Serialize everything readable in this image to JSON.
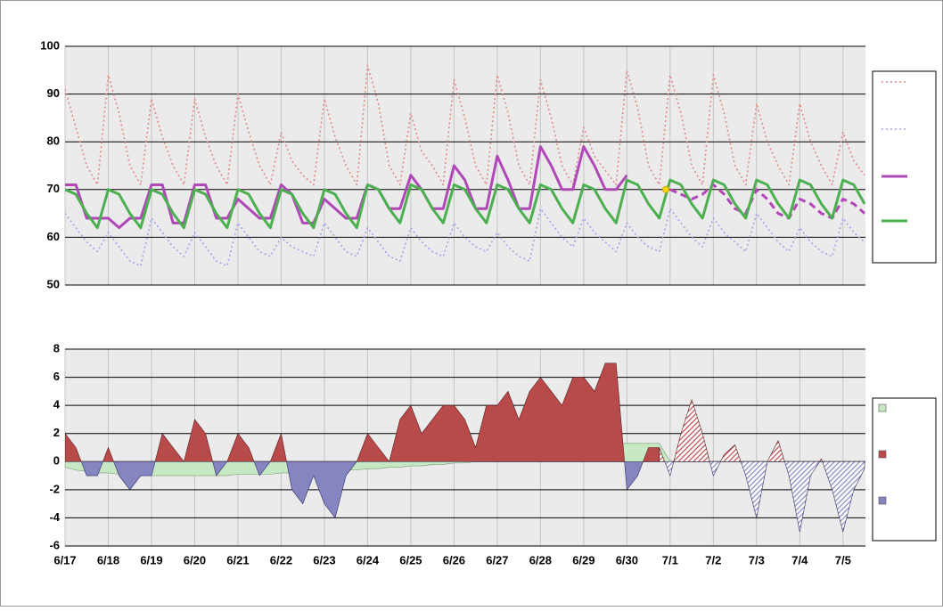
{
  "chart_data": [
    {
      "type": "line",
      "x": [
        0,
        0.25,
        0.5,
        0.75,
        1,
        1.25,
        1.5,
        1.75,
        2,
        2.25,
        2.5,
        2.75,
        3,
        3.25,
        3.5,
        3.75,
        4,
        4.25,
        4.5,
        4.75,
        5,
        5.25,
        5.5,
        5.75,
        6,
        6.25,
        6.5,
        6.75,
        7,
        7.25,
        7.5,
        7.75,
        8,
        8.25,
        8.5,
        8.75,
        9,
        9.25,
        9.5,
        9.75,
        10,
        10.25,
        10.5,
        10.75,
        11,
        11.25,
        11.5,
        11.75,
        12,
        12.25,
        12.5,
        12.75,
        13,
        13.25,
        13.5,
        13.75,
        14,
        14.25,
        14.5,
        14.75,
        15,
        15.25,
        15.5,
        15.75,
        16,
        16.25,
        16.5,
        16.75,
        17,
        17.25,
        17.5,
        17.75,
        18,
        18.25,
        18.5
      ],
      "xlim": [
        0,
        18.52
      ],
      "ylim": [
        50,
        100
      ],
      "yticks": [
        50,
        60,
        70,
        80,
        90,
        100
      ],
      "series": [
        {
          "color": "#e08a8a",
          "style": "dotted",
          "legend": true,
          "values": [
            91,
            83,
            75,
            71,
            94,
            86,
            75,
            71,
            89,
            81,
            75,
            71,
            89,
            81,
            75,
            71,
            90,
            82,
            75,
            71,
            82,
            76,
            73,
            71,
            89,
            81,
            75,
            71,
            96,
            88,
            75,
            71,
            86,
            78,
            75,
            71,
            93,
            85,
            75,
            71,
            94,
            86,
            75,
            71,
            93,
            85,
            75,
            71,
            83,
            77,
            74,
            71,
            95,
            87,
            75,
            71,
            94,
            86,
            75,
            71,
            94,
            86,
            75,
            71,
            88,
            80,
            75,
            71,
            88,
            80,
            75,
            71,
            82,
            76,
            73
          ]
        },
        {
          "color": "#a3a3ea",
          "style": "dotted",
          "legend": true,
          "values": [
            65,
            62,
            59,
            57,
            61,
            58,
            55,
            54,
            64,
            61,
            58,
            56,
            61,
            58,
            55,
            54,
            63,
            60,
            57,
            56,
            60,
            58,
            57,
            56,
            63,
            60,
            57,
            56,
            62,
            59,
            56,
            55,
            62,
            59,
            57,
            56,
            63,
            60,
            58,
            57,
            61,
            58,
            56,
            55,
            66,
            63,
            60,
            58,
            64,
            61,
            59,
            57,
            63,
            60,
            58,
            57,
            66,
            63,
            60,
            58,
            64,
            61,
            59,
            57,
            65,
            62,
            59,
            57,
            62,
            59,
            57,
            56,
            64,
            61,
            59
          ]
        },
        {
          "color": "#b048b8",
          "style": "solid",
          "legend": true,
          "values": [
            71,
            71,
            64,
            64,
            64,
            62,
            64,
            64,
            71,
            71,
            63,
            63,
            71,
            71,
            64,
            64,
            68,
            66,
            64,
            64,
            71,
            69,
            63,
            63,
            68,
            66,
            64,
            64,
            71,
            70,
            66,
            66,
            73,
            70,
            66,
            66,
            75,
            72,
            66,
            66,
            77,
            72,
            66,
            66,
            79,
            75,
            70,
            70,
            79,
            75,
            70,
            70,
            73,
            null,
            null,
            null,
            null,
            null,
            null,
            null,
            null,
            null,
            null,
            null,
            null,
            null,
            null,
            null,
            null,
            null,
            null,
            null,
            null,
            null,
            null
          ]
        },
        {
          "color": "#b048b8",
          "style": "dashed",
          "legend": false,
          "values": [
            null,
            null,
            null,
            null,
            null,
            null,
            null,
            null,
            null,
            null,
            null,
            null,
            null,
            null,
            null,
            null,
            null,
            null,
            null,
            null,
            null,
            null,
            null,
            null,
            null,
            null,
            null,
            null,
            null,
            null,
            null,
            null,
            null,
            null,
            null,
            null,
            null,
            null,
            null,
            null,
            null,
            null,
            null,
            null,
            null,
            null,
            null,
            null,
            null,
            null,
            null,
            null,
            null,
            null,
            null,
            null,
            70,
            69,
            68,
            69,
            71,
            69,
            66,
            65,
            70,
            68,
            65,
            64,
            68,
            67,
            65,
            64,
            68,
            67,
            65
          ]
        },
        {
          "color": "#4caf50",
          "style": "solid",
          "legend": true,
          "values": [
            70,
            69,
            65,
            62,
            70,
            69,
            65,
            62,
            70,
            69,
            65,
            62,
            70,
            69,
            65,
            62,
            70,
            69,
            65,
            62,
            70,
            69,
            65,
            62,
            70,
            69,
            65,
            62,
            71,
            70,
            66,
            63,
            71,
            70,
            66,
            63,
            71,
            70,
            66,
            63,
            71,
            70,
            66,
            63,
            71,
            70,
            66,
            63,
            71,
            70,
            66,
            63,
            72,
            71,
            67,
            64,
            72,
            71,
            67,
            64,
            72,
            71,
            67,
            64,
            72,
            71,
            67,
            64,
            72,
            71,
            67,
            64,
            72,
            71,
            67
          ]
        }
      ],
      "marker": {
        "x": 13.9,
        "y": 70,
        "color": "#ffd800"
      }
    },
    {
      "type": "area",
      "x": [
        0,
        0.25,
        0.5,
        0.75,
        1,
        1.25,
        1.5,
        1.75,
        2,
        2.25,
        2.5,
        2.75,
        3,
        3.25,
        3.5,
        3.75,
        4,
        4.25,
        4.5,
        4.75,
        5,
        5.25,
        5.5,
        5.75,
        6,
        6.25,
        6.5,
        6.75,
        7,
        7.25,
        7.5,
        7.75,
        8,
        8.25,
        8.5,
        8.75,
        9,
        9.25,
        9.5,
        9.75,
        10,
        10.25,
        10.5,
        10.75,
        11,
        11.25,
        11.5,
        11.75,
        12,
        12.25,
        12.5,
        12.75,
        13,
        13.25,
        13.5,
        13.75,
        14,
        14.25,
        14.5,
        14.75,
        15,
        15.25,
        15.5,
        15.75,
        16,
        16.25,
        16.5,
        16.75,
        17,
        17.25,
        17.5,
        17.75,
        18,
        18.25,
        18.5
      ],
      "xlim": [
        0,
        18.52
      ],
      "xticks": [
        {
          "value": 0,
          "label": "6/17"
        },
        {
          "value": 1,
          "label": "6/18"
        },
        {
          "value": 2,
          "label": "6/19"
        },
        {
          "value": 3,
          "label": "6/20"
        },
        {
          "value": 4,
          "label": "6/21"
        },
        {
          "value": 5,
          "label": "6/22"
        },
        {
          "value": 6,
          "label": "6/23"
        },
        {
          "value": 7,
          "label": "6/24"
        },
        {
          "value": 8,
          "label": "6/25"
        },
        {
          "value": 9,
          "label": "6/26"
        },
        {
          "value": 10,
          "label": "6/27"
        },
        {
          "value": 11,
          "label": "6/28"
        },
        {
          "value": 12,
          "label": "6/29"
        },
        {
          "value": 13,
          "label": "6/30"
        },
        {
          "value": 14,
          "label": "7/1"
        },
        {
          "value": 15,
          "label": "7/2"
        },
        {
          "value": 16,
          "label": "7/3"
        },
        {
          "value": 17,
          "label": "7/4"
        },
        {
          "value": 18,
          "label": "7/5"
        }
      ],
      "ylim": [
        -6,
        8
      ],
      "yticks": [
        -6,
        -4,
        -2,
        0,
        2,
        4,
        6,
        8
      ],
      "series": [
        {
          "color": "#c6e8c2",
          "legend": true,
          "values": [
            -0.4,
            -0.6,
            -0.7,
            -0.8,
            -0.8,
            -0.9,
            -0.9,
            -0.9,
            -1,
            -1,
            -1,
            -1,
            -1,
            -1,
            -1,
            -1,
            -0.9,
            -0.9,
            -0.9,
            -0.9,
            -0.8,
            -0.8,
            -0.8,
            -0.7,
            -0.7,
            -0.7,
            -0.6,
            -0.6,
            -0.5,
            -0.5,
            -0.4,
            -0.4,
            -0.3,
            -0.3,
            -0.2,
            -0.2,
            -0.1,
            -0.1,
            0,
            0.1,
            0.2,
            0.3,
            0.4,
            0.5,
            0.6,
            0.7,
            0.8,
            0.9,
            1.1,
            1.2,
            1.3,
            1.3,
            1.3,
            1.3,
            1.3,
            1.3,
            0,
            null,
            null,
            null,
            null,
            null,
            null,
            null,
            null,
            null,
            null,
            null,
            null,
            null,
            null,
            null,
            null,
            null,
            null
          ]
        },
        {
          "color": "#b84a4a",
          "negative_color": "#8585c2",
          "legend": true,
          "values": [
            2,
            1,
            -1,
            -1,
            1,
            -1,
            -2,
            -1,
            -1,
            2,
            1,
            0,
            3,
            2,
            -1,
            0,
            2,
            1,
            -1,
            0,
            2,
            -2,
            -3,
            -1,
            -3,
            -4,
            -1,
            0,
            2,
            1,
            0,
            3,
            4,
            2,
            3,
            4,
            4,
            3,
            1,
            4,
            4,
            5,
            3,
            5,
            6,
            5,
            4,
            6,
            6,
            5,
            7,
            7,
            -2,
            -1,
            1,
            1,
            null,
            null,
            null,
            null,
            null,
            null,
            null,
            null,
            null,
            null,
            null,
            null,
            null,
            null,
            null,
            null,
            null,
            null,
            null
          ]
        },
        {
          "color": "#b84a4a",
          "negative_color": "#8585c2",
          "pattern": "hatch",
          "legend": false,
          "values": [
            null,
            null,
            null,
            null,
            null,
            null,
            null,
            null,
            null,
            null,
            null,
            null,
            null,
            null,
            null,
            null,
            null,
            null,
            null,
            null,
            null,
            null,
            null,
            null,
            null,
            null,
            null,
            null,
            null,
            null,
            null,
            null,
            null,
            null,
            null,
            null,
            null,
            null,
            null,
            null,
            null,
            null,
            null,
            null,
            null,
            null,
            null,
            null,
            null,
            null,
            null,
            null,
            null,
            null,
            null,
            1,
            -1,
            2,
            4.4,
            2,
            -1,
            0.5,
            1.2,
            -1,
            -4,
            0,
            1.5,
            -1,
            -5,
            -1,
            0.2,
            -2,
            -5,
            -2,
            -0.5
          ]
        }
      ]
    }
  ]
}
